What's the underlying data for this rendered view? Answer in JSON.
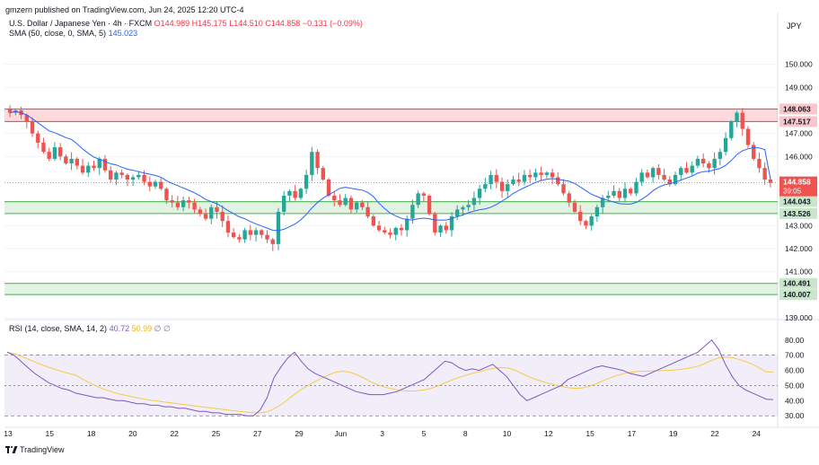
{
  "credit": "gmzern published on TradingView.com, Jun 24, 2025 12:20 UTC-4",
  "header": {
    "symbol": "U.S. Dollar / Japanese Yen · 4h · FXCM",
    "open": "O144.989",
    "high": "H145.175",
    "low": "L144.510",
    "close": "C144.858",
    "change": "−0.131 (−0.09%)",
    "sma_label": "SMA (50, close, 0, SMA, 5)",
    "sma_value": "145.023",
    "rsi_label": "RSI (14, close, SMA, 14, 2)",
    "rsi_value": "40.72",
    "rsi_ma_value": "50.99",
    "rsi_extra1": "∅",
    "rsi_extra2": "∅"
  },
  "currency": "JPY",
  "footer": {
    "brand": "TradingView"
  },
  "colors": {
    "up": "#26a69a",
    "down": "#ef5350",
    "sma": "#2962ff",
    "rsi": "#7e57c2",
    "rsi_ma": "#f7c948",
    "resistance_zone": "#f23645",
    "support_zone": "#4caf50"
  },
  "chart_data": [
    {
      "type": "candlestick",
      "y_ticks": [
        139.0,
        140.0,
        141.0,
        142.0,
        143.0,
        144.0,
        145.0,
        146.0,
        147.0,
        148.0,
        149.0,
        150.0
      ],
      "ylim": [
        139.0,
        151.0
      ],
      "x_tick_labels": [
        "13",
        "15",
        "18",
        "20",
        "22",
        "25",
        "27",
        "29",
        "Jun",
        "3",
        "5",
        "8",
        "10",
        "12",
        "15",
        "17",
        "19",
        "22",
        "24"
      ],
      "sma": {
        "name": "SMA (50, close, 0, SMA, 5)",
        "last": 145.023
      },
      "zones": [
        {
          "kind": "resistance",
          "low": 147.517,
          "high": 148.063,
          "labels": [
            "148.063",
            "147.517"
          ]
        },
        {
          "kind": "support",
          "low": 143.526,
          "high": 144.043,
          "labels": [
            "144.043",
            "143.526"
          ]
        },
        {
          "kind": "support",
          "low": 140.007,
          "high": 140.491,
          "labels": [
            "140.491",
            "140.007"
          ]
        }
      ],
      "last_price": {
        "value": 144.858,
        "label": "144.858",
        "countdown": "39:05"
      },
      "close_series": [
        147.9,
        148.0,
        147.8,
        147.5,
        147.0,
        146.6,
        146.2,
        145.9,
        146.4,
        146.0,
        145.7,
        145.9,
        145.6,
        145.3,
        145.6,
        145.5,
        145.9,
        145.4,
        145.0,
        145.3,
        145.2,
        145.0,
        145.1,
        145.2,
        144.9,
        144.7,
        144.9,
        144.6,
        144.1,
        144.0,
        143.8,
        144.1,
        144.0,
        143.7,
        143.5,
        143.3,
        143.8,
        143.6,
        143.2,
        142.7,
        142.5,
        142.4,
        142.8,
        142.6,
        142.8,
        142.6,
        142.4,
        142.2,
        143.6,
        144.3,
        144.5,
        144.2,
        144.6,
        145.2,
        146.2,
        145.5,
        145.0,
        144.3,
        144.1,
        143.9,
        144.2,
        143.7,
        144.0,
        143.8,
        143.4,
        143.0,
        142.8,
        142.7,
        142.6,
        142.9,
        142.8,
        143.3,
        143.9,
        144.4,
        144.3,
        143.5,
        142.7,
        143.0,
        142.8,
        143.4,
        143.7,
        143.8,
        143.9,
        144.2,
        144.6,
        144.8,
        145.2,
        144.9,
        144.5,
        144.8,
        145.0,
        144.9,
        145.2,
        145.1,
        145.3,
        145.2,
        145.3,
        145.1,
        144.8,
        144.4,
        144.0,
        143.6,
        143.2,
        143.0,
        143.4,
        143.8,
        144.2,
        144.3,
        144.5,
        144.2,
        144.6,
        144.4,
        144.9,
        145.3,
        145.1,
        145.5,
        145.2,
        145.0,
        144.8,
        145.2,
        145.5,
        145.3,
        145.6,
        145.9,
        145.7,
        145.5,
        145.9,
        146.2,
        146.8,
        147.5,
        147.9,
        147.2,
        146.5,
        145.9,
        145.5,
        145.0,
        144.858
      ]
    },
    {
      "type": "line",
      "name": "RSI (14, close, SMA, 14, 2)",
      "y_ticks": [
        30.0,
        40.0,
        50.0,
        60.0,
        70.0,
        80.0
      ],
      "ylim": [
        26,
        84
      ],
      "levels": {
        "upper": 70,
        "middle": 50,
        "lower": 30
      },
      "rsi_last": 40.72,
      "rsi_ma_last": 50.99,
      "rsi": [
        72,
        70,
        66,
        62,
        58,
        55,
        52,
        50,
        48,
        47,
        45,
        44,
        43,
        42,
        42,
        41,
        40,
        40,
        39,
        38,
        38,
        37,
        37,
        36,
        36,
        35,
        35,
        34,
        33,
        33,
        32,
        32,
        31,
        31,
        31,
        30,
        30,
        34,
        42,
        55,
        62,
        68,
        72,
        66,
        61,
        58,
        56,
        54,
        52,
        50,
        48,
        46,
        45,
        44,
        44,
        44,
        45,
        46,
        48,
        50,
        52,
        54,
        58,
        62,
        66,
        65,
        62,
        60,
        61,
        60,
        62,
        64,
        60,
        56,
        50,
        44,
        40,
        42,
        44,
        46,
        48,
        50,
        54,
        56,
        58,
        60,
        62,
        63,
        62,
        61,
        60,
        58,
        57,
        56,
        58,
        60,
        62,
        64,
        66,
        68,
        70,
        72,
        76,
        80,
        74,
        64,
        56,
        50,
        47,
        45,
        43,
        41,
        40.72
      ]
    }
  ]
}
